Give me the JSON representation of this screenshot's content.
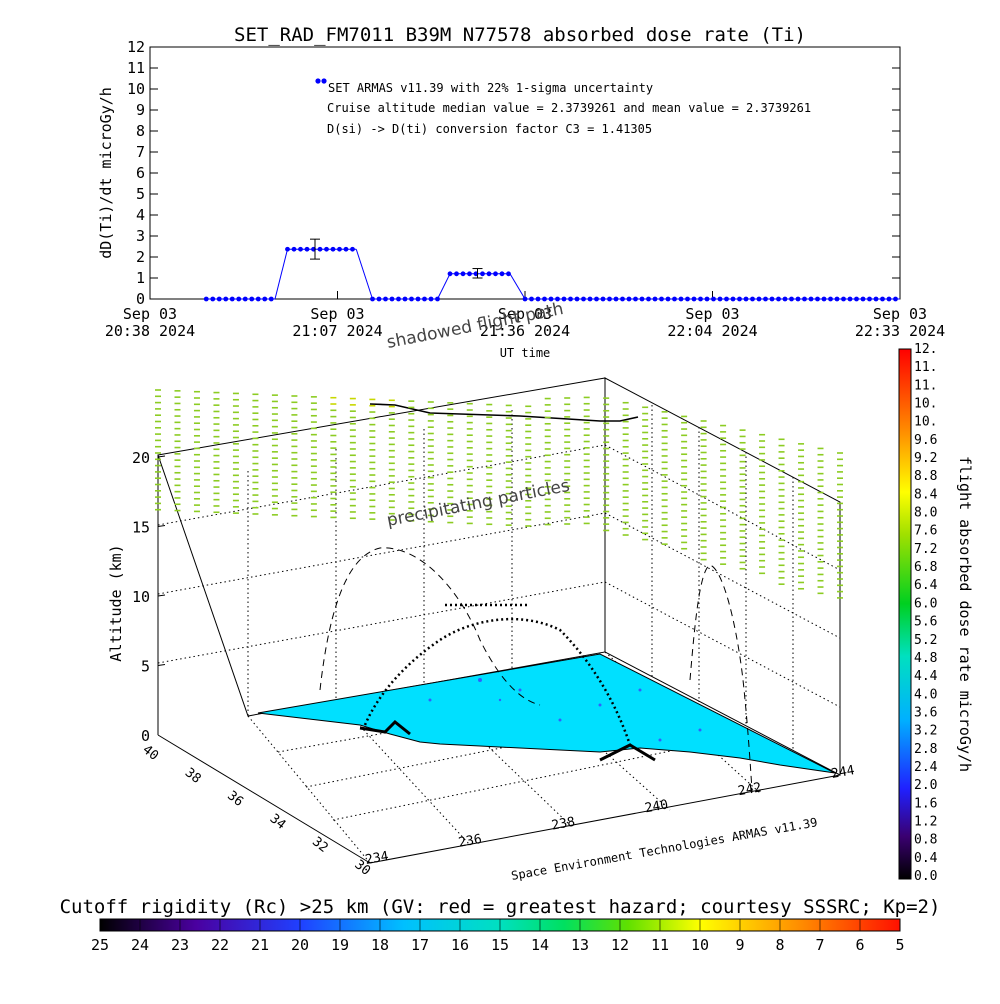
{
  "chart_data": [
    {
      "type": "scatter",
      "title": "SET_RAD_FM7011  B39M N77578 absorbed dose rate (Ti)",
      "ylabel": "dD(Ti)/dt microGy/h",
      "xlabel": "UT time",
      "ylim": [
        0,
        12
      ],
      "y_ticks": [
        "0",
        "1",
        "2",
        "3",
        "4",
        "5",
        "6",
        "7",
        "8",
        "9",
        "10",
        "11",
        "12"
      ],
      "x_ticks": [
        {
          "line1": "Sep 03",
          "line2": "20:38 2024"
        },
        {
          "line1": "Sep 03",
          "line2": "21:07 2024"
        },
        {
          "line1": "Sep 03",
          "line2": "21:36 2024"
        },
        {
          "line1": "Sep 03",
          "line2": "22:04 2024"
        },
        {
          "line1": "Sep 03",
          "line2": "22:33 2024"
        }
      ],
      "legend": {
        "placement": "top-left",
        "series_label": "SET ARMAS v11.39 with 22% 1-sigma uncertainty",
        "line2": "Cruise altitude median value = 2.3739261 and mean value = 2.3739261",
        "line3": "D(si) -> D(ti) conversion factor C3 = 1.41305"
      },
      "series": [
        {
          "name": "SET ARMAS v11.39 with 22% 1-sigma uncertainty",
          "segments": [
            {
              "x_start": 0.225,
              "x_end": 0.5,
              "value": 0.0
            },
            {
              "x_start": 0.5,
              "x_end": 0.55,
              "value": 0.0,
              "connector": true
            },
            {
              "x_start": 0.55,
              "x_end": 0.825,
              "value": 2.37
            },
            {
              "x_start": 0.825,
              "x_end": 0.89,
              "value": 0.0,
              "connector": true
            },
            {
              "x_start": 0.89,
              "x_end": 1.15,
              "value": 0.0
            },
            {
              "x_start": 1.15,
              "x_end": 1.2,
              "value": 0.0,
              "connector": true
            },
            {
              "x_start": 1.2,
              "x_end": 1.44,
              "value": 1.2
            },
            {
              "x_start": 1.44,
              "x_end": 1.5,
              "value": 0.0,
              "connector": true
            },
            {
              "x_start": 1.5,
              "x_end": 3.0,
              "value": 0.0
            }
          ],
          "errorbars": [
            {
              "x": 0.66,
              "value": 2.37,
              "low": 1.9,
              "high": 2.85
            },
            {
              "x": 1.31,
              "value": 1.2,
              "low": 1.0,
              "high": 1.45
            }
          ],
          "color": "#0000ff"
        }
      ]
    },
    {
      "type": "scatter",
      "title": "",
      "zlabel": "Altitude (km)",
      "z_ticks": [
        "0",
        "5",
        "10",
        "15",
        "20"
      ],
      "y_ticks": [
        "30",
        "32",
        "34",
        "36",
        "38",
        "40"
      ],
      "x_ticks": [
        "234",
        "236",
        "238",
        "240",
        "242",
        "244"
      ],
      "annotations": {
        "shadowed": "shadowed flight path",
        "precipitating": "precipitating particles",
        "credit": "Space Environment Technologies ARMAS v11.39"
      },
      "colorbar": {
        "label": "flight absorbed dose rate microGy/h",
        "ticks": [
          "0.0",
          "0.4",
          "0.8",
          "1.2",
          "1.6",
          "2.0",
          "2.4",
          "2.8",
          "3.2",
          "3.6",
          "4.0",
          "4.4",
          "4.8",
          "5.2",
          "5.6",
          "6.0",
          "6.4",
          "6.8",
          "7.2",
          "7.6",
          "8.0",
          "8.4",
          "8.8",
          "9.2",
          "9.6",
          "10.",
          "10.",
          "11.",
          "11.",
          "12."
        ],
        "range": [
          0,
          12
        ]
      },
      "surface_color": "#00e0ff",
      "particle_color": "#8ccc22"
    },
    {
      "type": "heatmap",
      "title": "Cutoff rigidity (Rc) >25 km (GV: red = greatest hazard; courtesy SSSRC; Kp=2)",
      "ticks": [
        "25",
        "24",
        "23",
        "22",
        "21",
        "20",
        "19",
        "18",
        "17",
        "16",
        "15",
        "14",
        "13",
        "12",
        "11",
        "10",
        "9",
        "8",
        "7",
        "6",
        "5"
      ]
    }
  ]
}
